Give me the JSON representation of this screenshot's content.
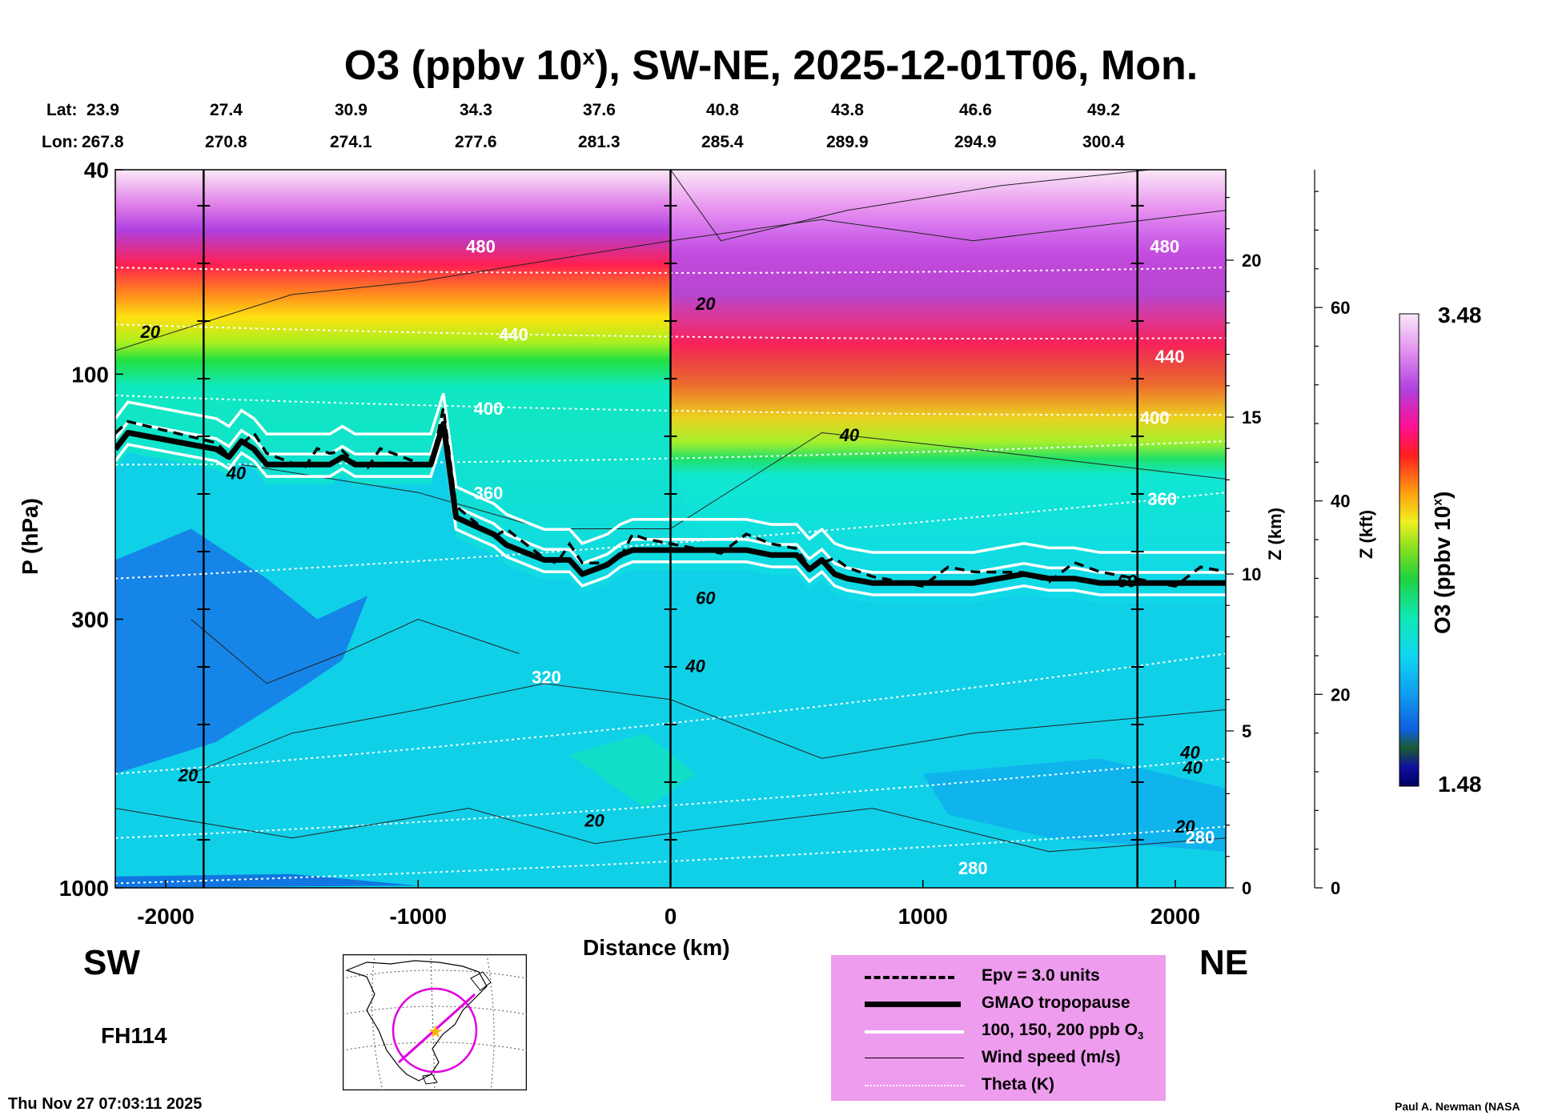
{
  "title": {
    "main": "O3 (ppbv 10",
    "sup": "x",
    "rest": "), SW-NE, 2025-12-01T06, Mon."
  },
  "coords": {
    "lat_label": "Lat:",
    "lon_label": "Lon:",
    "lat": [
      "23.9",
      "27.4",
      "30.9",
      "34.3",
      "37.6",
      "40.8",
      "43.8",
      "46.6",
      "49.2"
    ],
    "lon": [
      "267.8",
      "270.8",
      "274.1",
      "277.6",
      "281.3",
      "285.4",
      "289.9",
      "294.9",
      "300.4"
    ]
  },
  "chart_data": {
    "type": "heatmap",
    "title": "O3 (ppbv 10^x), SW-NE, 2025-12-01T06, Mon.",
    "xlabel": "Distance (km)",
    "ylabel": "P (hPa)",
    "y2label": "Z (km)",
    "y3label": "Z (kft)",
    "colorbar_label": "O3 (ppbv 10x)",
    "xlim": [
      -2200,
      2200
    ],
    "ylim_hpa": [
      1000,
      40
    ],
    "x_ticks": [
      "-2000",
      "-1000",
      "0",
      "1000",
      "2000"
    ],
    "x_tick_values": [
      -2000,
      -1000,
      0,
      1000,
      2000
    ],
    "p_ticks": [
      "40",
      "100",
      "300",
      "1000"
    ],
    "p_tick_values": [
      40,
      100,
      300,
      1000
    ],
    "z_km_ticks": [
      "0",
      "5",
      "10",
      "15",
      "20"
    ],
    "z_kft_ticks": [
      "0",
      "20",
      "40",
      "60"
    ],
    "colorbar": {
      "min": "1.48",
      "max": "3.48",
      "min_value": 1.48,
      "max_value": 3.48
    },
    "vertical_lines_km": [
      -1850,
      0,
      1850
    ],
    "tropopause": {
      "name": "GMAO tropopause",
      "x": [
        -2200,
        -2150,
        -1800,
        -1750,
        -1700,
        -1650,
        -1600,
        -1550,
        -1500,
        -1450,
        -1400,
        -1350,
        -1300,
        -1250,
        -1200,
        -1150,
        -1100,
        -1050,
        -1000,
        -950,
        -900,
        -850,
        -800,
        -750,
        -700,
        -650,
        -600,
        -550,
        -500,
        -450,
        -400,
        -350,
        -300,
        -250,
        -200,
        -150,
        -100,
        0,
        100,
        200,
        300,
        400,
        500,
        550,
        600,
        650,
        700,
        800,
        900,
        1000,
        1100,
        1200,
        1300,
        1400,
        1500,
        1600,
        1700,
        1800,
        1900,
        2000,
        2100,
        2200
      ],
      "p": [
        140,
        130,
        140,
        145,
        135,
        140,
        150,
        150,
        150,
        150,
        150,
        150,
        145,
        150,
        150,
        150,
        150,
        150,
        150,
        150,
        125,
        190,
        195,
        200,
        205,
        215,
        220,
        225,
        230,
        230,
        230,
        245,
        240,
        235,
        225,
        220,
        220,
        220,
        220,
        220,
        220,
        225,
        225,
        240,
        230,
        245,
        250,
        255,
        255,
        255,
        255,
        255,
        250,
        245,
        250,
        250,
        255,
        255,
        255,
        255,
        255,
        255
      ]
    },
    "wind_labels": [
      "20",
      "20",
      "20",
      "20",
      "20",
      "40",
      "40",
      "40",
      "40",
      "40",
      "60",
      "60"
    ],
    "wind_label_pos": [
      [
        -2100,
        85
      ],
      [
        -1950,
        620
      ],
      [
        -340,
        760
      ],
      [
        100,
        75
      ],
      [
        2000,
        780
      ],
      [
        -1760,
        160
      ],
      [
        60,
        380
      ],
      [
        670,
        135
      ],
      [
        2020,
        560
      ],
      [
        2030,
        600
      ],
      [
        100,
        280
      ],
      [
        1770,
        260
      ]
    ],
    "theta_labels": [
      "480",
      "480",
      "440",
      "440",
      "400",
      "400",
      "360",
      "360",
      "320",
      "280",
      "280"
    ],
    "theta_label_pos": [
      [
        -810,
        58
      ],
      [
        1900,
        58
      ],
      [
        -680,
        86
      ],
      [
        1920,
        95
      ],
      [
        -780,
        120
      ],
      [
        1860,
        125
      ],
      [
        -780,
        175
      ],
      [
        1890,
        180
      ],
      [
        -550,
        400
      ],
      [
        1140,
        940
      ],
      [
        2040,
        820
      ]
    ],
    "series": [
      {
        "name": "Epv = 3.0 units",
        "style": "dashed"
      },
      {
        "name": "GMAO tropopause",
        "style": "thick"
      },
      {
        "name": "100, 150, 200 ppb O3",
        "style": "white"
      },
      {
        "name": "Wind speed (m/s)",
        "style": "thin"
      },
      {
        "name": "Theta (K)",
        "style": "dotted"
      }
    ]
  },
  "legend": {
    "epv": "Epv = 3.0 units",
    "trop": "GMAO tropopause",
    "o3_pre": "100, 150, 200 ppb O",
    "o3_sub": "3",
    "wind": "Wind speed (m/s)",
    "theta": "Theta (K)"
  },
  "direction": {
    "sw": "SW",
    "ne": "NE"
  },
  "forecast_hour": "FH114",
  "timestamp": "Thu Nov 27 07:03:11 2025",
  "credit": "Paul A. Newman (NASA",
  "colors": {
    "tropopause": "#000000",
    "o3_contour": "#ffffff",
    "legend_bg": "#ee9cee",
    "map_route": "#e000e0",
    "map_star": "#ffb000"
  }
}
